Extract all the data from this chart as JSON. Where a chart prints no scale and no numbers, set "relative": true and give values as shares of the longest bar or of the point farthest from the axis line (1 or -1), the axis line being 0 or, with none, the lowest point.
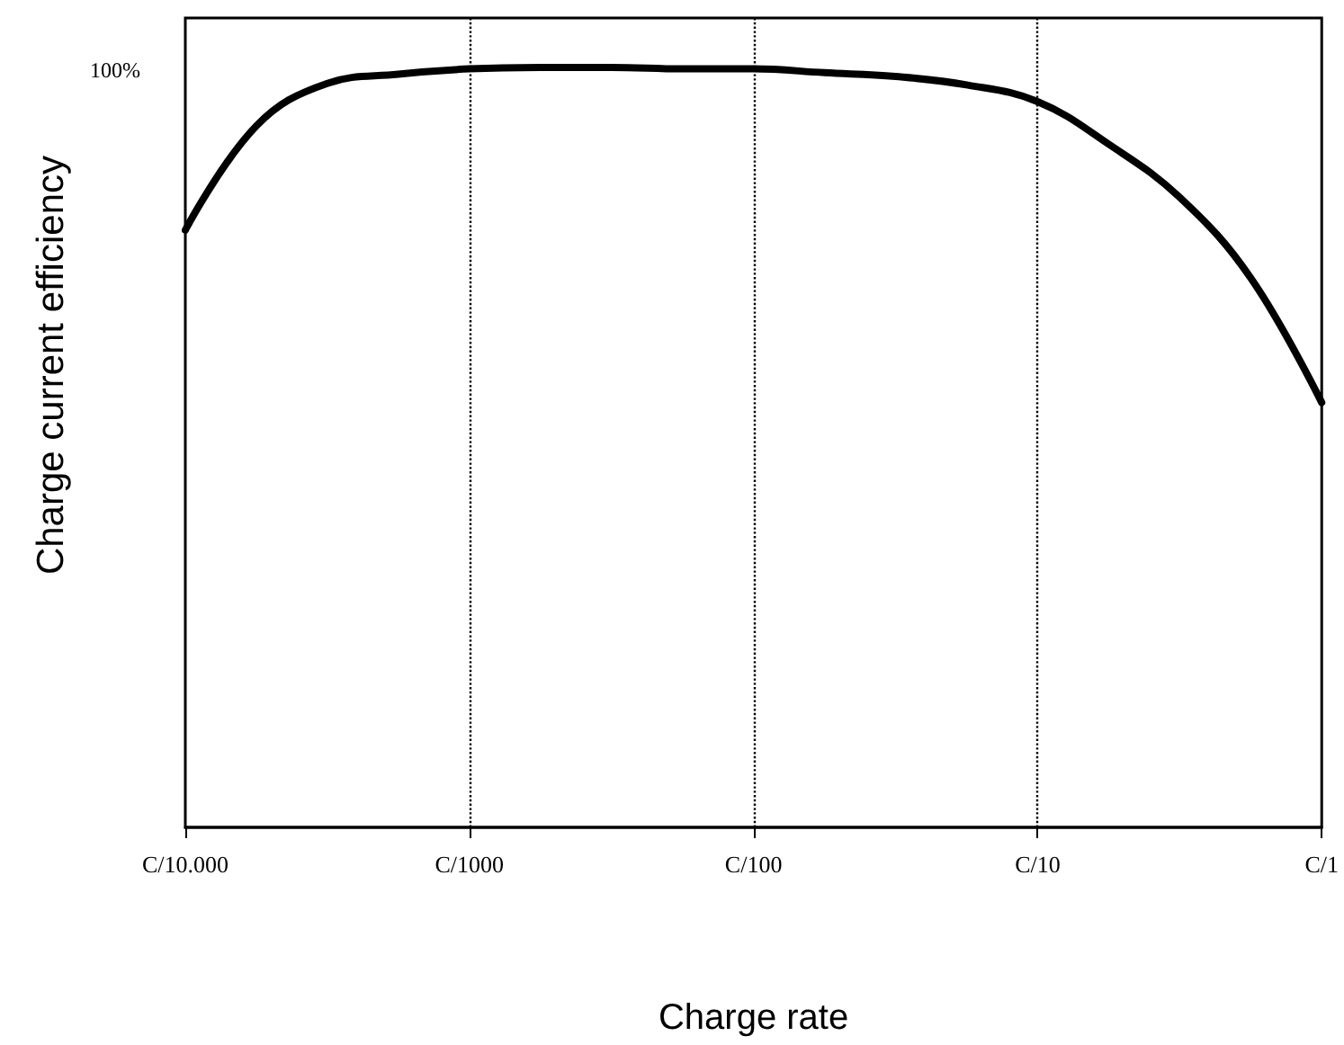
{
  "chart_data": {
    "type": "line",
    "xlabel": "Charge rate",
    "ylabel": "Charge current efficiency",
    "annotations": [
      "100%"
    ],
    "relative": true,
    "categories": [
      "C/10.000",
      null,
      null,
      null,
      "C/1000",
      null,
      null,
      null,
      "C/100",
      null,
      null,
      null,
      "C/10",
      null,
      null,
      null,
      "C/1"
    ],
    "series": [
      {
        "color": "#000000",
        "values": [
          0.786,
          0.923,
          0.979,
          0.991,
          0.998,
          1,
          1,
          0.998,
          0.998,
          0.993,
          0.988,
          0.977,
          0.955,
          0.899,
          0.829,
          0.723,
          0.559
        ]
      }
    ],
    "grid": "x",
    "tick_labels": "x",
    "marker": "none",
    "line_style": "solid"
  }
}
